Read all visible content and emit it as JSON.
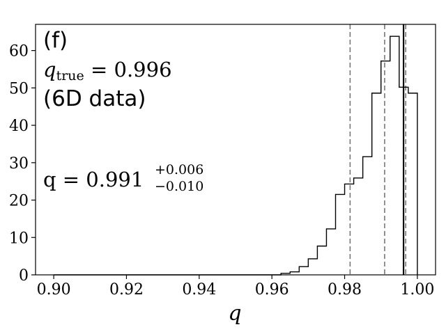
{
  "chart_data": {
    "type": "histogram",
    "title": "",
    "xlabel": "q",
    "ylabel": "",
    "xlim": [
      0.895,
      1.005
    ],
    "ylim": [
      0,
      67
    ],
    "grid": false,
    "x_ticks": [
      {
        "value": 0.9,
        "label": "0.90"
      },
      {
        "value": 0.92,
        "label": "0.92"
      },
      {
        "value": 0.94,
        "label": "0.94"
      },
      {
        "value": 0.96,
        "label": "0.96"
      },
      {
        "value": 0.98,
        "label": "0.98"
      },
      {
        "value": 1.0,
        "label": "1.00"
      }
    ],
    "y_ticks": [
      {
        "value": 0,
        "label": "0"
      },
      {
        "value": 10,
        "label": "10"
      },
      {
        "value": 20,
        "label": "20"
      },
      {
        "value": 30,
        "label": "30"
      },
      {
        "value": 40,
        "label": "40"
      },
      {
        "value": 50,
        "label": "50"
      },
      {
        "value": 60,
        "label": "60"
      }
    ],
    "bin_edges": [
      0.9,
      0.9025,
      0.905,
      0.9075,
      0.91,
      0.9125,
      0.915,
      0.9175,
      0.92,
      0.9225,
      0.925,
      0.9275,
      0.93,
      0.9325,
      0.935,
      0.9375,
      0.94,
      0.9425,
      0.945,
      0.9475,
      0.95,
      0.9525,
      0.955,
      0.9575,
      0.96,
      0.9625,
      0.965,
      0.9675,
      0.97,
      0.9725,
      0.975,
      0.9775,
      0.98,
      0.9825,
      0.985,
      0.9875,
      0.99,
      0.9925,
      0.995,
      0.9975,
      1.0
    ],
    "counts": [
      0,
      0,
      0,
      0,
      0,
      0,
      0,
      0,
      0,
      0,
      0,
      0,
      0,
      0,
      0,
      0,
      0,
      0,
      0,
      0,
      0,
      0,
      0,
      0,
      0,
      0.4,
      0.8,
      2.2,
      4.3,
      7.7,
      12.3,
      21.5,
      24.3,
      25.9,
      31.6,
      48.6,
      57.2,
      63.8,
      50.2,
      48.6
    ],
    "vertical_lines": [
      {
        "x": 0.9815,
        "style": "dashed",
        "color": "#777777"
      },
      {
        "x": 0.991,
        "style": "dashed",
        "color": "#777777"
      },
      {
        "x": 0.9968,
        "style": "dashed",
        "color": "#777777"
      },
      {
        "x": 0.9962,
        "style": "solid",
        "color": "#000000"
      }
    ],
    "annotations": {
      "panel": "(f)",
      "q_true_symbol": "q",
      "q_true_sub": "true",
      "q_true_value": " = 0.996",
      "dataset": "(6D data)",
      "q_est_text": "q = 0.991",
      "q_est_plus": "+0.006",
      "q_est_minus": "−0.010"
    }
  }
}
